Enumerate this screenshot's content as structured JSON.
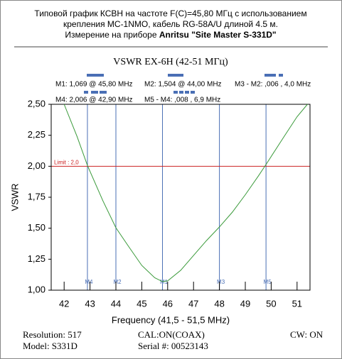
{
  "header": {
    "line1": "Типовой график КСВН на частоте F(C)=45,80 МГц с использованием",
    "line2": "крепления MC-1NMO, кабель RG-58A/U длиной 4.5 м.",
    "line3_prefix": "Измерение на приборе ",
    "line3_bold": "Anritsu \"Site Master S-331D\""
  },
  "chart_data": {
    "type": "line",
    "title": "VSWR EX-6H (42-51 МГц)",
    "legend_texts": [
      "M1: 1,069  @ 45,80 MHz",
      "M2: 1,504  @ 44,00 MHz",
      "M3 - M2: ,006  , 4,0 MHz",
      "M4: 2,006  @ 42,90 MHz",
      "M5 - M4: ,008  , 6,9 MHz"
    ],
    "x_label": "Frequency (41,5 - 51,5 MHz)",
    "y_label": "VSWR",
    "x": [
      42,
      42.5,
      42.9,
      43.5,
      44,
      44.5,
      45,
      45.5,
      45.8,
      46,
      46.5,
      47,
      47.5,
      48,
      48.5,
      49,
      49.5,
      49.8,
      50.5,
      51,
      51.4
    ],
    "series": [
      {
        "name": "VSWR",
        "color": "#3a9a3a",
        "values": [
          2.5,
          2.24,
          2.006,
          1.72,
          1.504,
          1.35,
          1.2,
          1.1,
          1.069,
          1.075,
          1.16,
          1.28,
          1.4,
          1.51,
          1.63,
          1.77,
          1.92,
          2.014,
          2.24,
          2.4,
          2.5
        ]
      }
    ],
    "xlim": [
      41.5,
      51.5
    ],
    "xticks": [
      42,
      43,
      44,
      45,
      46,
      47,
      48,
      49,
      50,
      51
    ],
    "ylim": [
      1,
      2.5
    ],
    "yticks": [
      {
        "value": 1,
        "label": "1,00"
      },
      {
        "value": 1.25,
        "label": "1,25"
      },
      {
        "value": 1.5,
        "label": "1,50"
      },
      {
        "value": 1.75,
        "label": "1,75"
      },
      {
        "value": 2,
        "label": "2,00"
      },
      {
        "value": 2.25,
        "label": "2,25"
      },
      {
        "value": 2.5,
        "label": "2,50"
      }
    ],
    "limit": {
      "value": 2,
      "label": "Limit : 2,0",
      "color": "#cc2222"
    },
    "markers": [
      {
        "label": "M4",
        "x": 42.9
      },
      {
        "label": "M2",
        "x": 44
      },
      {
        "label": "M1",
        "x": 45.8
      },
      {
        "label": "M3",
        "x": 48
      },
      {
        "label": "M5",
        "x": 49.8
      }
    ],
    "marker_color": "#4a6fb5"
  },
  "footer": {
    "resolution": "Resolution:  517",
    "cal": "CAL:ON(COAX)",
    "cw": "CW: ON",
    "model": "Model: S331D",
    "serial": "Serial #: 00523143"
  }
}
